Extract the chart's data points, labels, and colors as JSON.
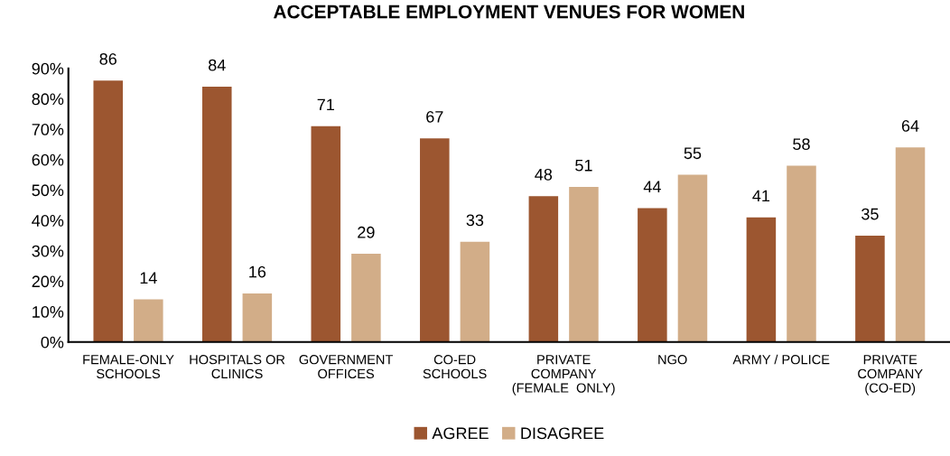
{
  "chart_data": {
    "type": "bar",
    "title": "ACCEPTABLE EMPLOYMENT VENUES FOR WOMEN",
    "categories": [
      "FEMALE-ONLY\nSCHOOLS",
      "HOSPITALS OR\nCLINICS",
      "GOVERNMENT\nOFFICES",
      "CO-ED\nSCHOOLS",
      "PRIVATE\nCOMPANY\n(FEMALE  ONLY)",
      "NGO",
      "ARMY / POLICE",
      "PRIVATE\nCOMPANY\n(CO-ED)"
    ],
    "series": [
      {
        "name": "AGREE",
        "color": "#9c5630",
        "values": [
          86,
          84,
          71,
          67,
          48,
          44,
          41,
          35
        ]
      },
      {
        "name": "DISAGREE",
        "color": "#d2ad88",
        "values": [
          14,
          16,
          29,
          33,
          51,
          55,
          58,
          64
        ]
      }
    ],
    "ylim": [
      0,
      90
    ],
    "yticks": [
      {
        "value": 0,
        "label": "0%"
      },
      {
        "value": 10,
        "label": "10%"
      },
      {
        "value": 20,
        "label": "20%"
      },
      {
        "value": 30,
        "label": "30%"
      },
      {
        "value": 40,
        "label": "40%"
      },
      {
        "value": 50,
        "label": "50%"
      },
      {
        "value": 60,
        "label": "60%"
      },
      {
        "value": 70,
        "label": "70%"
      },
      {
        "value": 80,
        "label": "80%"
      },
      {
        "value": 90,
        "label": "90%"
      }
    ],
    "data_labels": true,
    "grid": false,
    "legend": "bottom"
  }
}
